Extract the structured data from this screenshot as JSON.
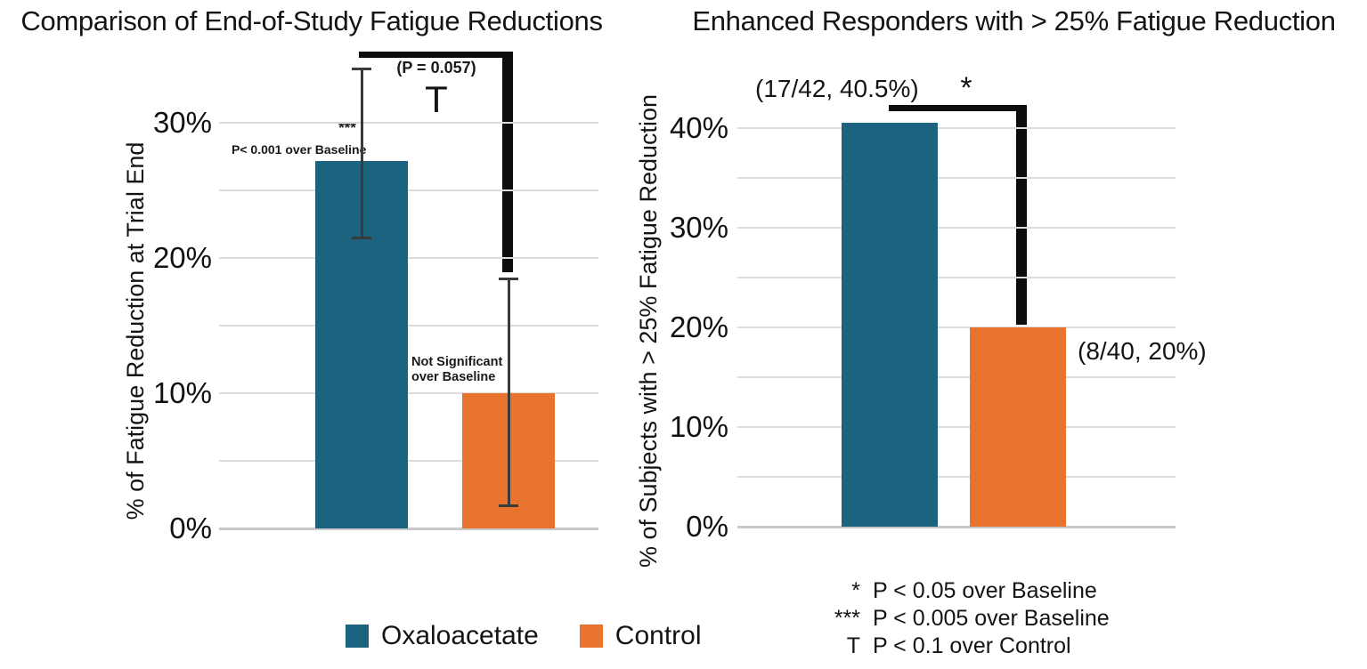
{
  "figure": {
    "background": "#ffffff"
  },
  "colors": {
    "oxaloacetate_blue": "#1c637f",
    "control_orange": "#e8732e",
    "gridline": "#dcdcdc",
    "baseline": "#c9c9c9",
    "error_bar": "#3a3a3a",
    "bracket": "#0d0d0d",
    "text": "#141414"
  },
  "legend": {
    "items": [
      {
        "label": "Oxaloacetate",
        "color": "#1c637f"
      },
      {
        "label": "Control",
        "color": "#e8732e"
      }
    ]
  },
  "footnotes": [
    {
      "symbol": "*",
      "text": "P < 0.05 over Baseline"
    },
    {
      "symbol": "***",
      "text": "P < 0.005 over Baseline"
    },
    {
      "symbol": "T",
      "text": "P < 0.1 over Control"
    }
  ],
  "chart_data": [
    {
      "type": "bar",
      "title": "Comparison of End-of-Study Fatigue Reductions",
      "ylabel": "% of Fatigue Reduction at Trial End",
      "categories": [
        "Oxaloacetate",
        "Control"
      ],
      "values": [
        27.2,
        10
      ],
      "error_bars": [
        {
          "low": 21.5,
          "high": 34.0
        },
        {
          "low": 1.7,
          "high": 18.5
        }
      ],
      "yticks": [
        "0%",
        "10%",
        "20%",
        "30%"
      ],
      "ytick_values": [
        0,
        10,
        20,
        30
      ],
      "ylim": [
        0,
        35
      ],
      "grid_max": 30,
      "grid_step": 5,
      "grid": "on",
      "legend_position": "bottom",
      "annotations": {
        "bar_0_symbol": "***",
        "bar_0_note": "P< 0.001 over Baseline",
        "bar_1_note_line1": "Not Significant",
        "bar_1_note_line2": "over Baseline",
        "significance_label": "(P = 0.057)",
        "significance_symbol": "T"
      }
    },
    {
      "type": "bar",
      "title": "Enhanced Responders with > 25% Fatigue Reduction",
      "ylabel": "% of Subjects with > 25% Fatigue Reduction",
      "categories": [
        "Oxaloacetate",
        "Control"
      ],
      "values": [
        40.5,
        20
      ],
      "yticks": [
        "0%",
        "10%",
        "20%",
        "30%",
        "40%"
      ],
      "ytick_values": [
        0,
        10,
        20,
        30,
        40
      ],
      "ylim": [
        0,
        45
      ],
      "grid_max": 40,
      "grid_step": 5,
      "grid": "on",
      "annotations": {
        "bar_0_label": "(17/42, 40.5%)",
        "bar_1_label": "(8/40, 20%)",
        "significance_symbol": "*"
      }
    }
  ]
}
